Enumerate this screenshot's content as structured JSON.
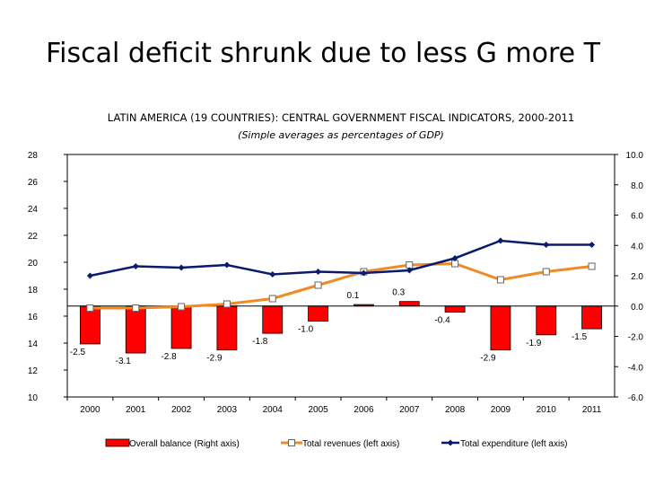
{
  "slide_title": "Fiscal deficit shrunk due to less G more T",
  "chart_data": {
    "type": "bar",
    "title": "LATIN AMERICA (19 COUNTRIES): CENTRAL GOVERNMENT FISCAL INDICATORS, 2000-2011",
    "subtitle": "(Simple averages as percentages of GDP)",
    "categories": [
      "2000",
      "2001",
      "2002",
      "2003",
      "2004",
      "2005",
      "2006",
      "2007",
      "2008",
      "2009",
      "2010",
      "2011"
    ],
    "left_axis": {
      "ylim": [
        10,
        28
      ],
      "ticks": [
        "10",
        "12",
        "14",
        "16",
        "18",
        "20",
        "22",
        "24",
        "26",
        "28"
      ]
    },
    "right_axis": {
      "ylim": [
        -6,
        10
      ],
      "ticks": [
        "-6.0",
        "-4.0",
        "-2.0",
        "0.0",
        "2.0",
        "4.0",
        "6.0",
        "8.0",
        "10.0"
      ]
    },
    "series": [
      {
        "name": "Overall balance (Right axis)",
        "type": "bar",
        "axis": "right",
        "color": "#ff0000",
        "values": [
          -2.5,
          -3.1,
          -2.8,
          -2.9,
          -1.8,
          -1.0,
          0.1,
          0.3,
          -0.4,
          -2.9,
          -1.9,
          -1.5
        ],
        "labels": [
          "-2.5",
          "-3.1",
          "-2.8",
          "-2.9",
          "-1.8",
          "-1.0",
          "0.1",
          "0.3",
          "-0.4",
          "-2.9",
          "-1.9",
          "-1.5"
        ]
      },
      {
        "name": "Total revenues (left axis)",
        "type": "line",
        "axis": "left",
        "color": "#f08a24",
        "values": [
          16.6,
          16.6,
          16.7,
          16.9,
          17.3,
          18.3,
          19.3,
          19.8,
          19.9,
          18.7,
          19.3,
          19.7
        ]
      },
      {
        "name": "Total expenditure (left axis)",
        "type": "line",
        "axis": "left",
        "color": "#0a1a6e",
        "values": [
          19.0,
          19.7,
          19.6,
          19.8,
          19.1,
          19.3,
          19.2,
          19.4,
          20.3,
          21.6,
          21.3,
          21.3
        ]
      }
    ],
    "legend": "bottom",
    "grid": false
  }
}
